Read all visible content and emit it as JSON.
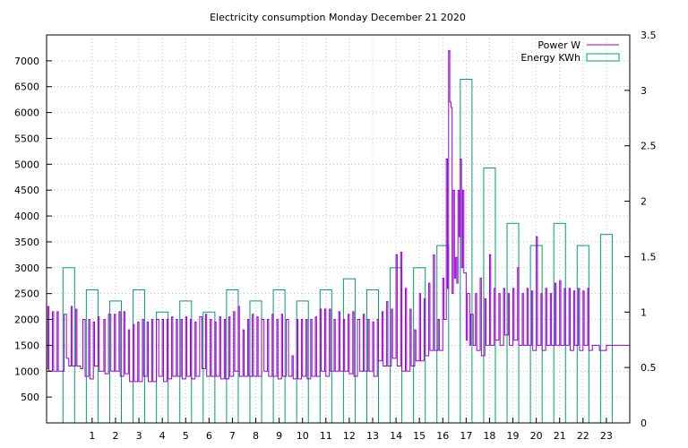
{
  "chart_data": {
    "type": "bar",
    "title": "Electricity consumption Monday December 21 2020",
    "legend": {
      "placement": "top-right",
      "entries": [
        {
          "label": "Power W",
          "color": "#9400d3"
        },
        {
          "label": "Energy KWh",
          "color": "#009e73"
        }
      ]
    },
    "grid": true,
    "x_axis": {
      "range": [
        -0.95,
        24.0
      ],
      "ticks": [
        1,
        2,
        3,
        4,
        5,
        6,
        7,
        8,
        9,
        10,
        11,
        12,
        13,
        14,
        15,
        16,
        17,
        18,
        19,
        20,
        21,
        22,
        23
      ],
      "tick_labels": [
        "1",
        "2",
        "3",
        "4",
        "5",
        "6",
        "7",
        "8",
        "9",
        "10",
        "11",
        "12",
        "13",
        "14",
        "15",
        "16",
        "17",
        "18",
        "19",
        "20",
        "21",
        "22",
        "23"
      ]
    },
    "y_axis_left": {
      "range": [
        0,
        7500
      ],
      "ticks": [
        500,
        1000,
        1500,
        2000,
        2500,
        3000,
        3500,
        4000,
        4500,
        5000,
        5500,
        6000,
        6500,
        7000
      ],
      "tick_labels": [
        "500",
        "1000",
        "1500",
        "2000",
        "2500",
        "3000",
        "3500",
        "4000",
        "4500",
        "5000",
        "5500",
        "6000",
        "6500",
        "7000"
      ]
    },
    "y_axis_right": {
      "range": [
        0,
        3.5
      ],
      "ticks": [
        0,
        0.5,
        1,
        1.5,
        2,
        2.5,
        3,
        3.5
      ],
      "tick_labels": [
        "0",
        "0.5",
        "1",
        "1.5",
        "2",
        "2.5",
        "3",
        "3.5"
      ]
    },
    "series": [
      {
        "name": "Energy KWh",
        "type": "boxes",
        "axis": "right",
        "color": "#009e73",
        "x": [
          0,
          1,
          2,
          3,
          4,
          5,
          6,
          7,
          8,
          9,
          10,
          11,
          12,
          13,
          14,
          15,
          16,
          17,
          18,
          19,
          20,
          21,
          22,
          23
        ],
        "values": [
          1.4,
          1.2,
          1.1,
          1.2,
          1.0,
          1.1,
          1.0,
          1.2,
          1.1,
          1.2,
          1.1,
          1.2,
          1.3,
          1.2,
          1.4,
          1.4,
          1.6,
          3.1,
          2.3,
          1.8,
          1.6,
          1.8,
          1.6,
          1.7
        ]
      },
      {
        "name": "Power W",
        "type": "steps",
        "axis": "left",
        "color": "#9400d3",
        "points": [
          [
            -0.95,
            1050
          ],
          [
            -0.9,
            2250
          ],
          [
            -0.85,
            1000
          ],
          [
            -0.7,
            2150
          ],
          [
            -0.65,
            1000
          ],
          [
            -0.5,
            2150
          ],
          [
            -0.45,
            1000
          ],
          [
            -0.3,
            1000
          ],
          [
            -0.2,
            2100
          ],
          [
            -0.1,
            1250
          ],
          [
            0.0,
            1100
          ],
          [
            0.1,
            2250
          ],
          [
            0.15,
            1100
          ],
          [
            0.3,
            2200
          ],
          [
            0.35,
            1100
          ],
          [
            0.5,
            1050
          ],
          [
            0.6,
            2000
          ],
          [
            0.7,
            900
          ],
          [
            0.85,
            2000
          ],
          [
            0.9,
            850
          ],
          [
            1.05,
            1950
          ],
          [
            1.1,
            1100
          ],
          [
            1.25,
            2050
          ],
          [
            1.3,
            1000
          ],
          [
            1.5,
            2000
          ],
          [
            1.55,
            950
          ],
          [
            1.7,
            2100
          ],
          [
            1.8,
            1000
          ],
          [
            1.95,
            2100
          ],
          [
            2.0,
            1000
          ],
          [
            2.15,
            2150
          ],
          [
            2.2,
            900
          ],
          [
            2.35,
            2150
          ],
          [
            2.4,
            950
          ],
          [
            2.55,
            1800
          ],
          [
            2.6,
            800
          ],
          [
            2.75,
            1900
          ],
          [
            2.8,
            800
          ],
          [
            2.95,
            1950
          ],
          [
            3.0,
            800
          ],
          [
            3.15,
            2000
          ],
          [
            3.2,
            900
          ],
          [
            3.35,
            1950
          ],
          [
            3.4,
            800
          ],
          [
            3.55,
            2000
          ],
          [
            3.6,
            800
          ],
          [
            3.75,
            2000
          ],
          [
            3.85,
            900
          ],
          [
            4.0,
            2000
          ],
          [
            4.05,
            800
          ],
          [
            4.2,
            2000
          ],
          [
            4.25,
            850
          ],
          [
            4.4,
            2050
          ],
          [
            4.45,
            900
          ],
          [
            4.6,
            2000
          ],
          [
            4.65,
            900
          ],
          [
            4.8,
            2000
          ],
          [
            4.85,
            850
          ],
          [
            5.0,
            2050
          ],
          [
            5.05,
            900
          ],
          [
            5.2,
            2000
          ],
          [
            5.25,
            850
          ],
          [
            5.4,
            1950
          ],
          [
            5.45,
            900
          ],
          [
            5.6,
            2050
          ],
          [
            5.7,
            1050
          ],
          [
            5.85,
            2100
          ],
          [
            5.9,
            900
          ],
          [
            6.05,
            2000
          ],
          [
            6.1,
            900
          ],
          [
            6.25,
            1950
          ],
          [
            6.3,
            900
          ],
          [
            6.45,
            2050
          ],
          [
            6.5,
            850
          ],
          [
            6.65,
            2000
          ],
          [
            6.7,
            850
          ],
          [
            6.85,
            2050
          ],
          [
            6.9,
            900
          ],
          [
            7.05,
            2150
          ],
          [
            7.1,
            1000
          ],
          [
            7.25,
            2250
          ],
          [
            7.3,
            900
          ],
          [
            7.45,
            1800
          ],
          [
            7.5,
            900
          ],
          [
            7.65,
            2000
          ],
          [
            7.7,
            900
          ],
          [
            7.85,
            2100
          ],
          [
            7.9,
            900
          ],
          [
            8.05,
            2050
          ],
          [
            8.1,
            900
          ],
          [
            8.25,
            2000
          ],
          [
            8.35,
            1000
          ],
          [
            8.5,
            2000
          ],
          [
            8.55,
            900
          ],
          [
            8.7,
            2100
          ],
          [
            8.75,
            900
          ],
          [
            8.9,
            2000
          ],
          [
            8.95,
            850
          ],
          [
            9.1,
            2100
          ],
          [
            9.15,
            900
          ],
          [
            9.3,
            2000
          ],
          [
            9.4,
            900
          ],
          [
            9.55,
            1300
          ],
          [
            9.6,
            850
          ],
          [
            9.75,
            2000
          ],
          [
            9.8,
            850
          ],
          [
            9.95,
            2000
          ],
          [
            10.0,
            900
          ],
          [
            10.15,
            2000
          ],
          [
            10.2,
            850
          ],
          [
            10.35,
            2000
          ],
          [
            10.4,
            900
          ],
          [
            10.55,
            2050
          ],
          [
            10.6,
            900
          ],
          [
            10.75,
            2200
          ],
          [
            10.8,
            1000
          ],
          [
            10.95,
            2200
          ],
          [
            11.0,
            900
          ],
          [
            11.15,
            2200
          ],
          [
            11.2,
            1000
          ],
          [
            11.35,
            2000
          ],
          [
            11.4,
            1000
          ],
          [
            11.55,
            2150
          ],
          [
            11.6,
            1000
          ],
          [
            11.75,
            2000
          ],
          [
            11.8,
            1000
          ],
          [
            11.95,
            2100
          ],
          [
            12.0,
            950
          ],
          [
            12.15,
            2150
          ],
          [
            12.2,
            900
          ],
          [
            12.35,
            2000
          ],
          [
            12.45,
            1000
          ],
          [
            12.6,
            2100
          ],
          [
            12.65,
            1000
          ],
          [
            12.8,
            2000
          ],
          [
            12.85,
            1000
          ],
          [
            13.0,
            1950
          ],
          [
            13.05,
            900
          ],
          [
            13.2,
            2000
          ],
          [
            13.25,
            1200
          ],
          [
            13.4,
            2150
          ],
          [
            13.45,
            1100
          ],
          [
            13.6,
            2350
          ],
          [
            13.65,
            1100
          ],
          [
            13.8,
            2200
          ],
          [
            13.85,
            1250
          ],
          [
            14.0,
            3250
          ],
          [
            14.05,
            1100
          ],
          [
            14.2,
            3300
          ],
          [
            14.25,
            1000
          ],
          [
            14.4,
            2600
          ],
          [
            14.45,
            1000
          ],
          [
            14.6,
            2200
          ],
          [
            14.65,
            1100
          ],
          [
            14.8,
            1800
          ],
          [
            14.85,
            1200
          ],
          [
            15.0,
            2500
          ],
          [
            15.05,
            1200
          ],
          [
            15.2,
            2400
          ],
          [
            15.25,
            1300
          ],
          [
            15.4,
            2700
          ],
          [
            15.45,
            1400
          ],
          [
            15.6,
            3250
          ],
          [
            15.65,
            1400
          ],
          [
            15.8,
            2000
          ],
          [
            15.85,
            1400
          ],
          [
            16.0,
            2800
          ],
          [
            16.05,
            2000
          ],
          [
            16.15,
            5100
          ],
          [
            16.2,
            2600
          ],
          [
            16.25,
            7200
          ],
          [
            16.3,
            6200
          ],
          [
            16.35,
            6100
          ],
          [
            16.4,
            2500
          ],
          [
            16.45,
            4500
          ],
          [
            16.5,
            2800
          ],
          [
            16.55,
            3200
          ],
          [
            16.6,
            2700
          ],
          [
            16.65,
            4500
          ],
          [
            16.7,
            3600
          ],
          [
            16.75,
            5100
          ],
          [
            16.8,
            3000
          ],
          [
            16.85,
            4500
          ],
          [
            16.9,
            2900
          ],
          [
            17.0,
            1600
          ],
          [
            17.05,
            2500
          ],
          [
            17.15,
            1500
          ],
          [
            17.2,
            2100
          ],
          [
            17.3,
            1500
          ],
          [
            17.4,
            2500
          ],
          [
            17.45,
            1400
          ],
          [
            17.6,
            2800
          ],
          [
            17.65,
            1300
          ],
          [
            17.8,
            2400
          ],
          [
            17.85,
            1500
          ],
          [
            18.0,
            3250
          ],
          [
            18.05,
            1500
          ],
          [
            18.2,
            2600
          ],
          [
            18.25,
            1600
          ],
          [
            18.4,
            2500
          ],
          [
            18.45,
            1500
          ],
          [
            18.6,
            2600
          ],
          [
            18.65,
            1700
          ],
          [
            18.8,
            2500
          ],
          [
            18.85,
            1500
          ],
          [
            19.0,
            2600
          ],
          [
            19.05,
            1600
          ],
          [
            19.2,
            3000
          ],
          [
            19.25,
            1500
          ],
          [
            19.4,
            2500
          ],
          [
            19.45,
            1500
          ],
          [
            19.6,
            2600
          ],
          [
            19.65,
            1500
          ],
          [
            19.8,
            2550
          ],
          [
            19.85,
            1400
          ],
          [
            20.0,
            3600
          ],
          [
            20.05,
            1500
          ],
          [
            20.2,
            2500
          ],
          [
            20.25,
            1400
          ],
          [
            20.4,
            2600
          ],
          [
            20.45,
            1500
          ],
          [
            20.6,
            2500
          ],
          [
            20.65,
            1500
          ],
          [
            20.8,
            2700
          ],
          [
            20.85,
            1500
          ],
          [
            21.0,
            2750
          ],
          [
            21.05,
            1500
          ],
          [
            21.2,
            2600
          ],
          [
            21.25,
            1500
          ],
          [
            21.4,
            2600
          ],
          [
            21.45,
            1400
          ],
          [
            21.6,
            2550
          ],
          [
            21.65,
            1500
          ],
          [
            21.8,
            2600
          ],
          [
            21.85,
            1400
          ],
          [
            22.0,
            2550
          ],
          [
            22.05,
            1500
          ],
          [
            22.2,
            2600
          ],
          [
            22.25,
            1400
          ],
          [
            22.4,
            1500
          ],
          [
            22.7,
            1400
          ],
          [
            23.0,
            1500
          ]
        ]
      }
    ]
  }
}
